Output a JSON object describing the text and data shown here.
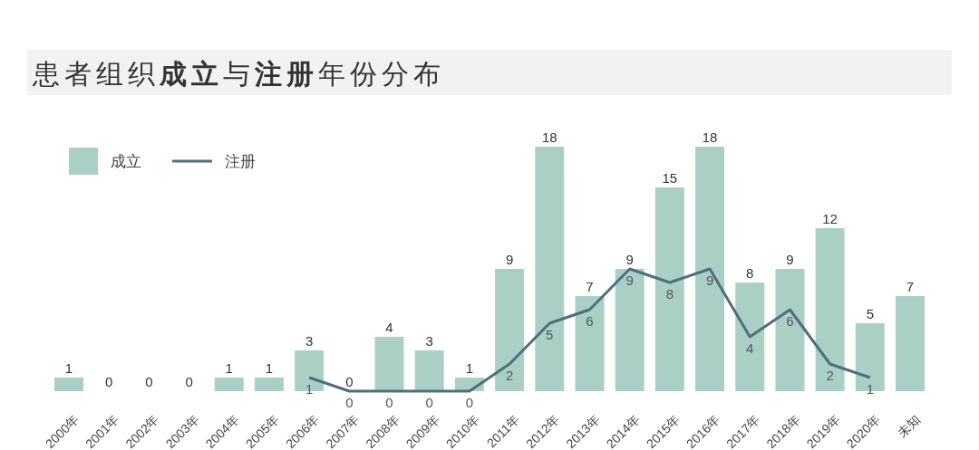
{
  "chart_data": {
    "type": "bar",
    "title": "患者组织**成立**与**注册**年份分布",
    "categories": [
      "2000年",
      "2001年",
      "2002年",
      "2003年",
      "2004年",
      "2005年",
      "2006年",
      "2007年",
      "2008年",
      "2009年",
      "2010年",
      "2011年",
      "2012年",
      "2013年",
      "2014年",
      "2015年",
      "2016年",
      "2017年",
      "2018年",
      "2019年",
      "2020年",
      "未知"
    ],
    "series": [
      {
        "name": "成立",
        "color": "#aad0c6",
        "values": [
          1,
          0,
          0,
          0,
          1,
          1,
          3,
          0,
          4,
          3,
          1,
          9,
          18,
          7,
          9,
          15,
          18,
          8,
          9,
          12,
          5,
          7
        ]
      },
      {
        "name": "注册",
        "type": "line",
        "color": "#4e6e7c",
        "values": [
          null,
          null,
          null,
          null,
          null,
          null,
          1,
          0,
          0,
          0,
          0,
          2,
          5,
          6,
          9,
          8,
          9,
          4,
          6,
          2,
          1,
          null
        ]
      }
    ],
    "data_labels": true,
    "legend": "top left"
  }
}
